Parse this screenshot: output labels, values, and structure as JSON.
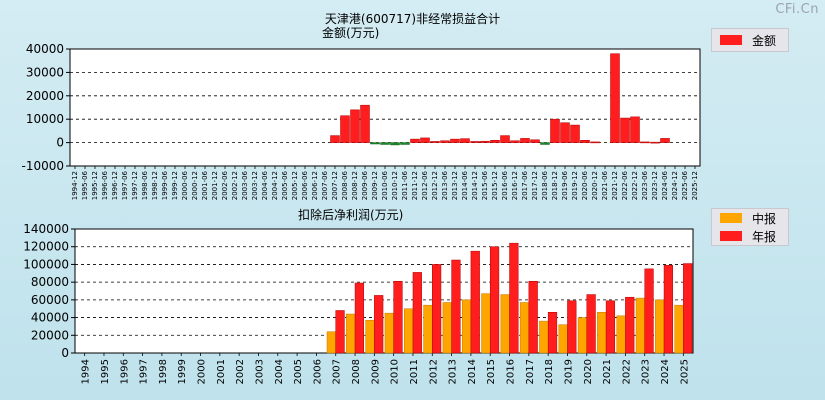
{
  "brand": "CFi.Cn",
  "colors": {
    "annual": "#ff1d1d",
    "interim": "#ffa500",
    "negative": "#1a8a2a"
  },
  "chart_data": [
    {
      "type": "bar",
      "title": "天津港(600717)非经常损益合计",
      "ylabel": "金额(万元)",
      "ylim": [
        -10000,
        40000
      ],
      "yticks": [
        -10000,
        0,
        10000,
        20000,
        30000,
        40000
      ],
      "ytick_labels": [
        "-10000",
        "0",
        "10000",
        "20000",
        "30000",
        "40000"
      ],
      "legend": [
        {
          "name": "金额",
          "color": "#ff1d1d"
        }
      ],
      "categories": [
        "1994-12",
        "1995-06",
        "1995-12",
        "1996-06",
        "1996-12",
        "1997-06",
        "1997-12",
        "1998-06",
        "1998-12",
        "1999-06",
        "1999-12",
        "2000-06",
        "2000-12",
        "2001-06",
        "2001-12",
        "2002-06",
        "2002-12",
        "2003-06",
        "2003-12",
        "2004-06",
        "2004-12",
        "2005-06",
        "2005-12",
        "2006-06",
        "2006-12",
        "2007-06",
        "2007-12",
        "2008-06",
        "2008-12",
        "2009-06",
        "2009-12",
        "2010-06",
        "2010-12",
        "2011-06",
        "2011-12",
        "2012-06",
        "2012-12",
        "2013-06",
        "2013-12",
        "2014-06",
        "2014-12",
        "2015-06",
        "2015-12",
        "2016-06",
        "2016-12",
        "2017-06",
        "2017-12",
        "2018-06",
        "2018-12",
        "2019-06",
        "2019-12",
        "2020-06",
        "2020-12",
        "2021-06",
        "2021-12",
        "2022-06",
        "2022-12",
        "2023-06",
        "2023-12",
        "2024-06",
        "2024-12",
        "2025-06",
        "2025-12"
      ],
      "values": [
        0,
        0,
        0,
        0,
        0,
        0,
        0,
        0,
        0,
        0,
        0,
        0,
        0,
        0,
        0,
        0,
        0,
        0,
        0,
        0,
        0,
        0,
        0,
        0,
        0,
        0,
        3000,
        11500,
        14000,
        16000,
        -600,
        -800,
        -1000,
        -800,
        1500,
        2000,
        500,
        800,
        1500,
        1700,
        500,
        600,
        1000,
        3000,
        800,
        1800,
        1200,
        -800,
        10000,
        8500,
        7500,
        1000,
        300,
        0,
        38000,
        10500,
        11000,
        300,
        200,
        1800,
        0,
        0,
        0
      ]
    },
    {
      "type": "bar",
      "title": "扣除后净利润(万元)",
      "ylim": [
        0,
        140000
      ],
      "yticks": [
        0,
        20000,
        40000,
        60000,
        80000,
        100000,
        120000,
        140000
      ],
      "ytick_labels": [
        "0",
        "20000",
        "40000",
        "60000",
        "80000",
        "100000",
        "120000",
        "140000"
      ],
      "legend": [
        {
          "name": "中报",
          "color": "#ffa500"
        },
        {
          "name": "年报",
          "color": "#ff1d1d"
        }
      ],
      "categories": [
        "1994",
        "1995",
        "1996",
        "1997",
        "1998",
        "1999",
        "2000",
        "2001",
        "2002",
        "2003",
        "2004",
        "2005",
        "2006",
        "2007",
        "2008",
        "2009",
        "2010",
        "2011",
        "2012",
        "2013",
        "2014",
        "2015",
        "2016",
        "2017",
        "2018",
        "2019",
        "2020",
        "2021",
        "2022",
        "2023",
        "2024",
        "2025"
      ],
      "series": [
        {
          "name": "中报",
          "values": [
            0,
            0,
            0,
            0,
            0,
            0,
            0,
            0,
            0,
            0,
            0,
            0,
            0,
            24000,
            44000,
            37000,
            45000,
            50000,
            54000,
            57000,
            60000,
            67000,
            66000,
            57000,
            36000,
            32000,
            40000,
            46000,
            42000,
            62000,
            60000,
            54000
          ]
        },
        {
          "name": "年报",
          "values": [
            0,
            0,
            0,
            0,
            0,
            0,
            0,
            0,
            0,
            0,
            0,
            0,
            0,
            48000,
            79000,
            65000,
            81000,
            91000,
            100000,
            105000,
            115000,
            120000,
            124000,
            81000,
            46000,
            59000,
            66000,
            59000,
            63000,
            95000,
            99000,
            101000
          ]
        }
      ]
    }
  ]
}
